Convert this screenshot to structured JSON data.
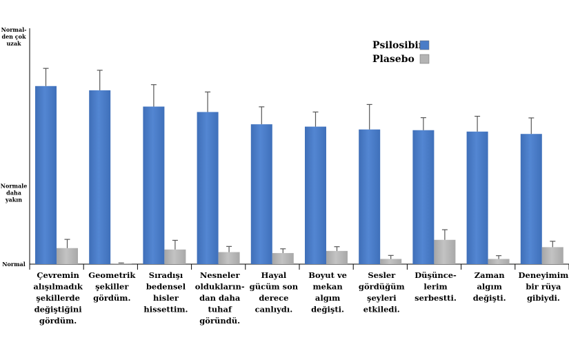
{
  "chart_data": {
    "type": "bar",
    "categories": [
      [
        "Çevremin",
        "alışılmadık",
        "şekillerde",
        "değiştiğini",
        "gördüm."
      ],
      [
        "Geometrik",
        "şekiller",
        "gördüm."
      ],
      [
        "Sıradışı",
        "bedensel",
        "hisler",
        "hissettim."
      ],
      [
        "Nesneler",
        "oldukların-",
        "dan daha",
        "tuhaf",
        "göründü."
      ],
      [
        "Hayal",
        "gücüm son",
        "derece",
        "canlıydı."
      ],
      [
        "Boyut ve",
        "mekan",
        "algım",
        "değişti."
      ],
      [
        "Sesler",
        "gördüğüm",
        "şeyleri",
        "etkiledi."
      ],
      [
        "Düşünce-",
        "lerim",
        "serbestti."
      ],
      [
        "Zaman",
        "algım",
        "değişti."
      ],
      [
        "Deneyimim",
        "bir rüya",
        "gibiydi."
      ]
    ],
    "y_ticks": [
      {
        "value": 0,
        "lines": [
          "Normal"
        ]
      },
      {
        "value": 0.3,
        "lines": [
          "Normale",
          "daha",
          "yakın"
        ]
      },
      {
        "value": 1.0,
        "lines": [
          "Normal-",
          "den çok",
          "uzak"
        ]
      }
    ],
    "ylim": [
      0,
      1.0
    ],
    "legend_position": "top-right",
    "series": [
      {
        "name": "Psilosibin",
        "color": "#4a7cc7",
        "values": [
          0.755,
          0.737,
          0.668,
          0.645,
          0.593,
          0.583,
          0.571,
          0.568,
          0.562,
          0.552
        ],
        "errors": [
          0.075,
          0.085,
          0.093,
          0.085,
          0.074,
          0.062,
          0.106,
          0.053,
          0.065,
          0.068
        ]
      },
      {
        "name": "Plasebo",
        "color": "#b4b4b4",
        "values": [
          0.068,
          0.003,
          0.062,
          0.051,
          0.047,
          0.056,
          0.022,
          0.103,
          0.022,
          0.072
        ],
        "errors": [
          0.037,
          0.002,
          0.039,
          0.024,
          0.018,
          0.018,
          0.015,
          0.043,
          0.014,
          0.025
        ]
      }
    ],
    "grid": false,
    "title": "",
    "xlabel": "",
    "ylabel": ""
  }
}
